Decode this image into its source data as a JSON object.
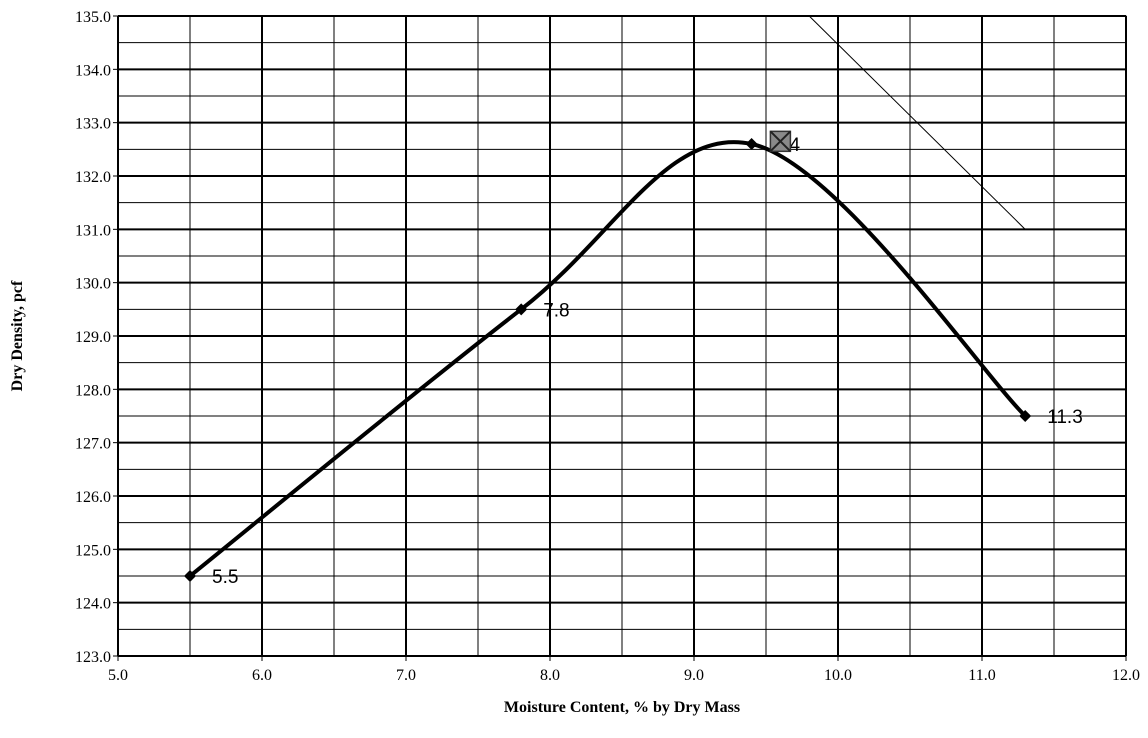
{
  "chart_data": {
    "type": "scatter",
    "title": "",
    "xlabel": "Moisture Content, % by Dry Mass",
    "ylabel": "Dry Density, pcf",
    "xlim": [
      5.0,
      12.0
    ],
    "ylim": [
      123.0,
      135.0
    ],
    "x_major_step": 1.0,
    "x_minor_step": 0.5,
    "y_major_step": 1.0,
    "y_minor_step": 0.5,
    "x_tick_labels": [
      "5.0",
      "6.0",
      "7.0",
      "8.0",
      "9.0",
      "10.0",
      "11.0",
      "12.0"
    ],
    "y_tick_labels": [
      "123.0",
      "124.0",
      "125.0",
      "126.0",
      "127.0",
      "128.0",
      "129.0",
      "130.0",
      "131.0",
      "132.0",
      "133.0",
      "134.0",
      "135.0"
    ],
    "grid": true,
    "legend": "none",
    "series": [
      {
        "marker": "diamond",
        "color": "#000000",
        "x": [
          5.5,
          7.8,
          9.4,
          11.3
        ],
        "y": [
          124.5,
          129.5,
          132.6,
          127.5
        ],
        "point_labels": [
          "5.5",
          "7.8",
          "9.4",
          "11.3"
        ],
        "curve": "smoothed"
      },
      {
        "marker": "square-x",
        "color": "#555555",
        "x": [
          9.6
        ],
        "y": [
          132.65
        ]
      },
      {
        "marker": "none",
        "color": "#000000",
        "line": "thin",
        "x": [
          9.8,
          11.3
        ],
        "y": [
          135.0,
          131.0
        ]
      }
    ]
  }
}
